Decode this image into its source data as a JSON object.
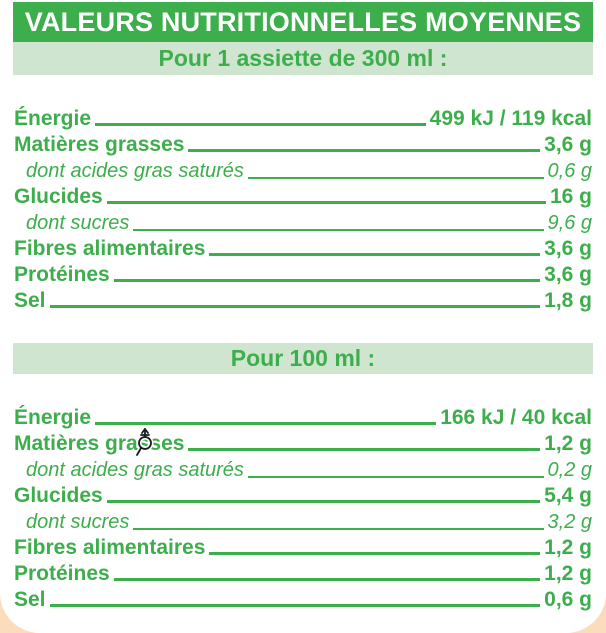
{
  "header": {
    "title": "VALEURS NUTRITIONNELLES MOYENNES"
  },
  "sections": [
    {
      "subtitle": "Pour 1 assiette de 300 ml :",
      "rows": [
        {
          "label": "Énergie",
          "value": "499 kJ / 119 kcal",
          "style": "bold"
        },
        {
          "label": "Matières grasses",
          "value": "3,6 g",
          "style": "bold"
        },
        {
          "label": "dont acides gras saturés",
          "value": "0,6 g",
          "style": "italic"
        },
        {
          "label": "Glucides",
          "value": "16 g",
          "style": "bold"
        },
        {
          "label": "dont sucres",
          "value": "9,6 g",
          "style": "italic"
        },
        {
          "label": "Fibres alimentaires",
          "value": "3,6 g",
          "style": "bold"
        },
        {
          "label": "Protéines",
          "value": "3,6 g",
          "style": "bold"
        },
        {
          "label": "Sel",
          "value": "1,8 g",
          "style": "bold"
        }
      ]
    },
    {
      "subtitle": "Pour 100 ml :",
      "rows": [
        {
          "label": "Énergie",
          "value": "166 kJ / 40 kcal",
          "style": "bold"
        },
        {
          "label": "Matières grasses",
          "value": "1,2 g",
          "style": "bold"
        },
        {
          "label": "dont acides gras saturés",
          "value": "0,2 g",
          "style": "italic"
        },
        {
          "label": "Glucides",
          "value": "5,4 g",
          "style": "bold"
        },
        {
          "label": "dont sucres",
          "value": "3,2 g",
          "style": "italic"
        },
        {
          "label": "Fibres alimentaires",
          "value": "1,2 g",
          "style": "bold"
        },
        {
          "label": "Protéines",
          "value": "1,2 g",
          "style": "bold"
        },
        {
          "label": "Sel",
          "value": "0,6 g",
          "style": "bold"
        }
      ]
    }
  ],
  "colors": {
    "green": "#3dae4c",
    "light_green": "#cfe5cf",
    "peach": "#fbdcbd",
    "white": "#ffffff"
  },
  "cursor": {
    "name": "zoom-pan-cursor"
  }
}
